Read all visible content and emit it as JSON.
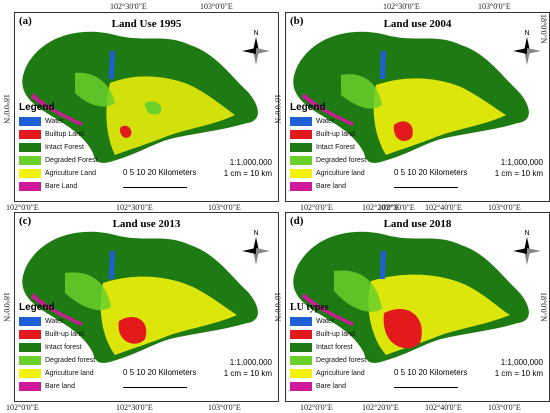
{
  "panels": [
    {
      "id": "a",
      "label": "(a)",
      "title": "Land Use 1995",
      "legend_title": "Legend",
      "legend": [
        "Water",
        "Builtup Land",
        "Intact Forest",
        "Degraded Forest",
        "Agriculture Land",
        "Bare Land"
      ],
      "scale": "0  5 10     20 Kilometers",
      "ratio": "1:1,000,000",
      "cm": "1 cm = 10 km",
      "north": "N",
      "lat": "18°0'0\"N",
      "lon_top": [
        "102°30'0\"E",
        "103°0'0\"E"
      ],
      "lon_bottom": [
        "102°0'0\"E",
        "102°30'0\"E",
        "103°0'0\"E"
      ]
    },
    {
      "id": "b",
      "label": "(b)",
      "title": "Land use 2004",
      "legend_title": "Legend",
      "legend": [
        "Water",
        "Built-up land",
        "Intact Forest",
        "Degraded forest",
        "Agriculture land",
        "Bare land"
      ],
      "scale": "0  5 10     20 Kilometers",
      "ratio": "1:1,000,000",
      "cm": "1 cm = 10 km",
      "north": "N",
      "lat": "18°0'0\"N",
      "lon_top": [
        "102°30'0\"E",
        "103°0'0\"E"
      ],
      "lon_bottom": [
        "102°30'0\"E"
      ]
    },
    {
      "id": "c",
      "label": "(c)",
      "title": "Land use 2013",
      "legend_title": "Legend",
      "legend": [
        "Water",
        "Built-up land",
        "Intact forest",
        "Degraded forest",
        "Agriculture land",
        "Bare land"
      ],
      "scale": "0  5 10     20 Kilometers",
      "ratio": "1:1,000,000",
      "cm": "1 cm = 10 km",
      "north": "N",
      "lat": "18°0'0\"N",
      "lon_bottom": [
        "102°0'0\"E",
        "102°30'0\"E",
        "103°0'0\"E"
      ]
    },
    {
      "id": "d",
      "label": "(d)",
      "title": "Land use 2018",
      "legend_title": "LU types",
      "legend": [
        "Water",
        "Built-up land",
        "Intact forest",
        "Degraded forest",
        "Agriculture land",
        "Bare land"
      ],
      "scale": "0  5 10     20 Kilometers",
      "ratio": "1:1,000,000",
      "cm": "1 cm = 10 km",
      "north": "N",
      "lat": "18°0'0\"N",
      "lon_top": [
        "102°0'0\"E",
        "102°20'0\"E",
        "102°40'0\"E",
        "103°0'0\"E"
      ],
      "lon_bottom": [
        "102°0'0\"E",
        "102°20'0\"E",
        "102°40'0\"E",
        "103°0'0\"E"
      ]
    }
  ],
  "colors": {
    "water": "#1f5fd6",
    "builtup": "#e31a1c",
    "intact": "#1e7a12",
    "degraded": "#6ad02a",
    "agriculture": "#f2f20a",
    "bare": "#d0189a"
  }
}
